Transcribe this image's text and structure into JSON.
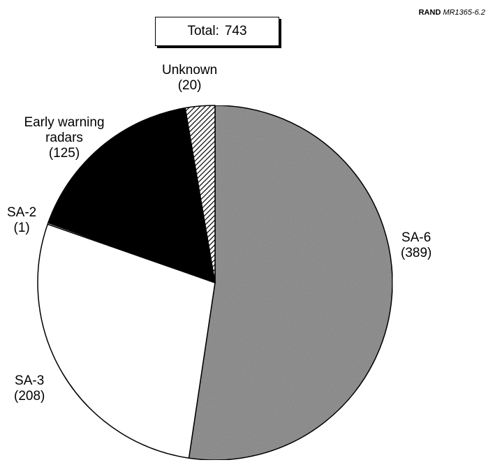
{
  "header": {
    "publisher": "RAND",
    "report_id": "MR1365-6.2"
  },
  "total": {
    "label": "Total:",
    "value": "743"
  },
  "chart_data": {
    "type": "pie",
    "total": 743,
    "slices": [
      {
        "name": "SA-6",
        "value": 389,
        "count_label": "(389)",
        "fill": "#9a9a9a"
      },
      {
        "name": "SA-3",
        "value": 208,
        "count_label": "(208)",
        "fill": "#ffffff"
      },
      {
        "name": "SA-2",
        "value": 1,
        "count_label": "(1)",
        "fill": "#ffffff"
      },
      {
        "name": "Early warning radars",
        "value": 125,
        "count_label": "(125)",
        "fill": "#000000"
      },
      {
        "name": "Unknown",
        "value": 20,
        "count_label": "(20)",
        "fill": "hatch"
      }
    ],
    "start_angle_deg": 0,
    "direction": "clockwise"
  }
}
